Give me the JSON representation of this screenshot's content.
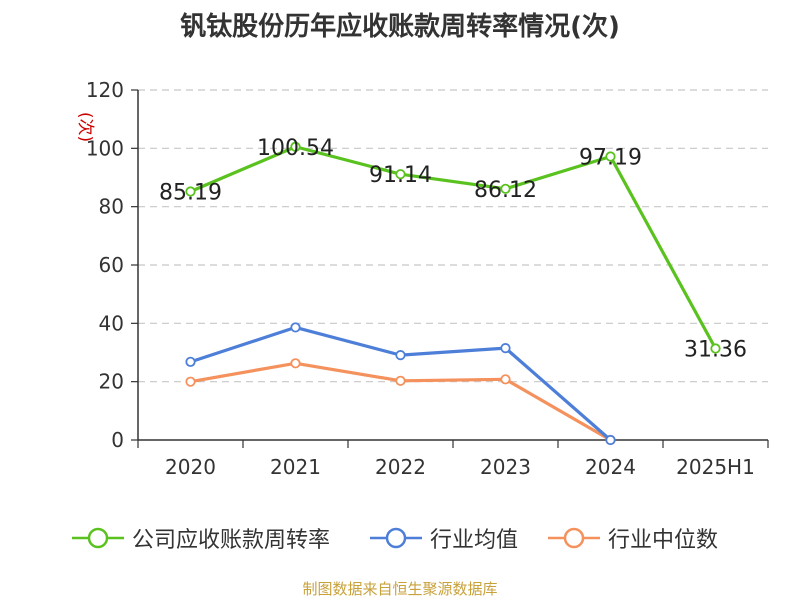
{
  "title": "钒钛股份历年应收账款周转率情况(次)",
  "source": "制图数据来自恒生聚源数据库",
  "chart_data": {
    "type": "line",
    "ylabel": "(次)",
    "ylim": [
      0,
      120
    ],
    "yticks": [
      0,
      20,
      40,
      60,
      80,
      100,
      120
    ],
    "grid": true,
    "legend_position": "bottom",
    "categories": [
      "2020",
      "2021",
      "2022",
      "2023",
      "2024",
      "2025H1"
    ],
    "series": [
      {
        "name": "公司应收账款周转率",
        "color": "#5ac21f",
        "values": [
          85.19,
          100.54,
          91.14,
          86.12,
          97.19,
          31.36
        ],
        "labels": [
          "85.19",
          "100.54",
          "91.14",
          "86.12",
          "97.19",
          "31.36"
        ]
      },
      {
        "name": "行业均值",
        "color": "#4e7fd8",
        "values": [
          26.8,
          38.6,
          29.1,
          31.5,
          0,
          null
        ]
      },
      {
        "name": "行业中位数",
        "color": "#f4915c",
        "values": [
          20.0,
          26.3,
          20.3,
          20.8,
          0,
          null
        ]
      }
    ]
  }
}
